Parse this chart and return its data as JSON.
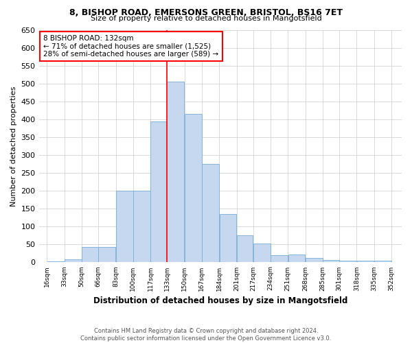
{
  "title": "8, BISHOP ROAD, EMERSONS GREEN, BRISTOL, BS16 7ET",
  "subtitle": "Size of property relative to detached houses in Mangotsfield",
  "xlabel": "Distribution of detached houses by size in Mangotsfield",
  "ylabel": "Number of detached properties",
  "footnote1": "Contains HM Land Registry data © Crown copyright and database right 2024.",
  "footnote2": "Contains public sector information licensed under the Open Government Licence v3.0.",
  "annotation_line1": "8 BISHOP ROAD: 132sqm",
  "annotation_line2": "← 71% of detached houses are smaller (1,525)",
  "annotation_line3": "28% of semi-detached houses are larger (589) →",
  "bar_left_edges": [
    16,
    33,
    50,
    66,
    83,
    100,
    117,
    133,
    150,
    167,
    184,
    201,
    217,
    234,
    251,
    268,
    285,
    301,
    318,
    335
  ],
  "bar_widths": [
    17,
    17,
    16,
    17,
    17,
    17,
    16,
    17,
    17,
    17,
    17,
    16,
    17,
    17,
    17,
    17,
    16,
    17,
    17,
    17
  ],
  "bar_heights": [
    3,
    9,
    43,
    43,
    200,
    200,
    395,
    505,
    415,
    275,
    135,
    75,
    52,
    20,
    22,
    12,
    7,
    5,
    5,
    4
  ],
  "bar_color": "#c5d8ef",
  "bar_edgecolor": "#7aadd4",
  "vline_x": 133,
  "vline_color": "red",
  "ylim": [
    0,
    650
  ],
  "yticks": [
    0,
    50,
    100,
    150,
    200,
    250,
    300,
    350,
    400,
    450,
    500,
    550,
    600,
    650
  ],
  "xtick_labels": [
    "16sqm",
    "33sqm",
    "50sqm",
    "66sqm",
    "83sqm",
    "100sqm",
    "117sqm",
    "133sqm",
    "150sqm",
    "167sqm",
    "184sqm",
    "201sqm",
    "217sqm",
    "234sqm",
    "251sqm",
    "268sqm",
    "285sqm",
    "301sqm",
    "318sqm",
    "335sqm",
    "352sqm"
  ],
  "xtick_positions": [
    16,
    33,
    50,
    66,
    83,
    100,
    117,
    133,
    150,
    167,
    184,
    201,
    217,
    234,
    251,
    268,
    285,
    301,
    318,
    335,
    352
  ],
  "background_color": "#ffffff",
  "grid_color": "#cccccc",
  "annotation_box_color": "#ffffff",
  "annotation_box_edgecolor": "red",
  "xlim": [
    8,
    362
  ]
}
